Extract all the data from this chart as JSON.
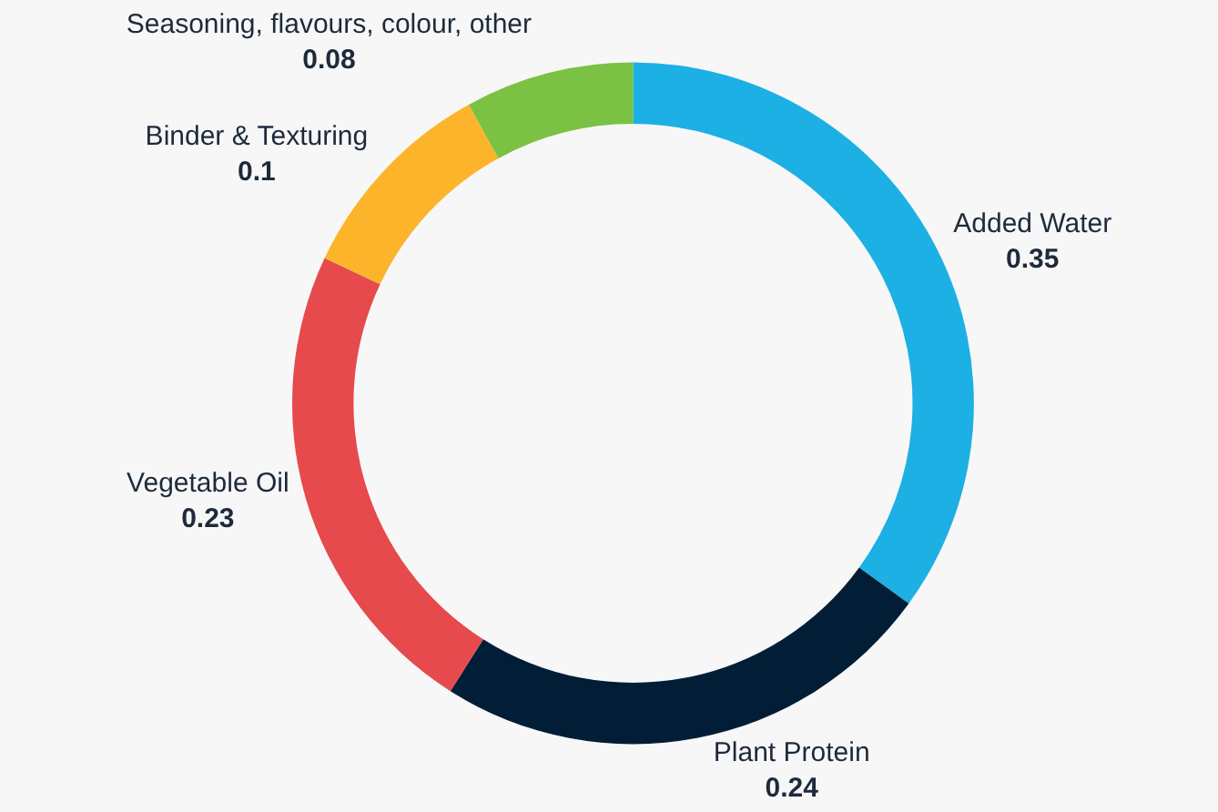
{
  "chart_data": {
    "type": "donut",
    "categories": [
      "Added Water",
      "Plant Protein",
      "Vegetable Oil",
      "Binder & Texturing",
      "Seasoning, flavours, colour, other"
    ],
    "values": [
      0.35,
      0.24,
      0.23,
      0.1,
      0.08
    ],
    "colors": [
      "#1cb0e4",
      "#011e36",
      "#e64a4c",
      "#fcb52b",
      "#7bc144"
    ],
    "data_labels": true,
    "legend": false
  }
}
